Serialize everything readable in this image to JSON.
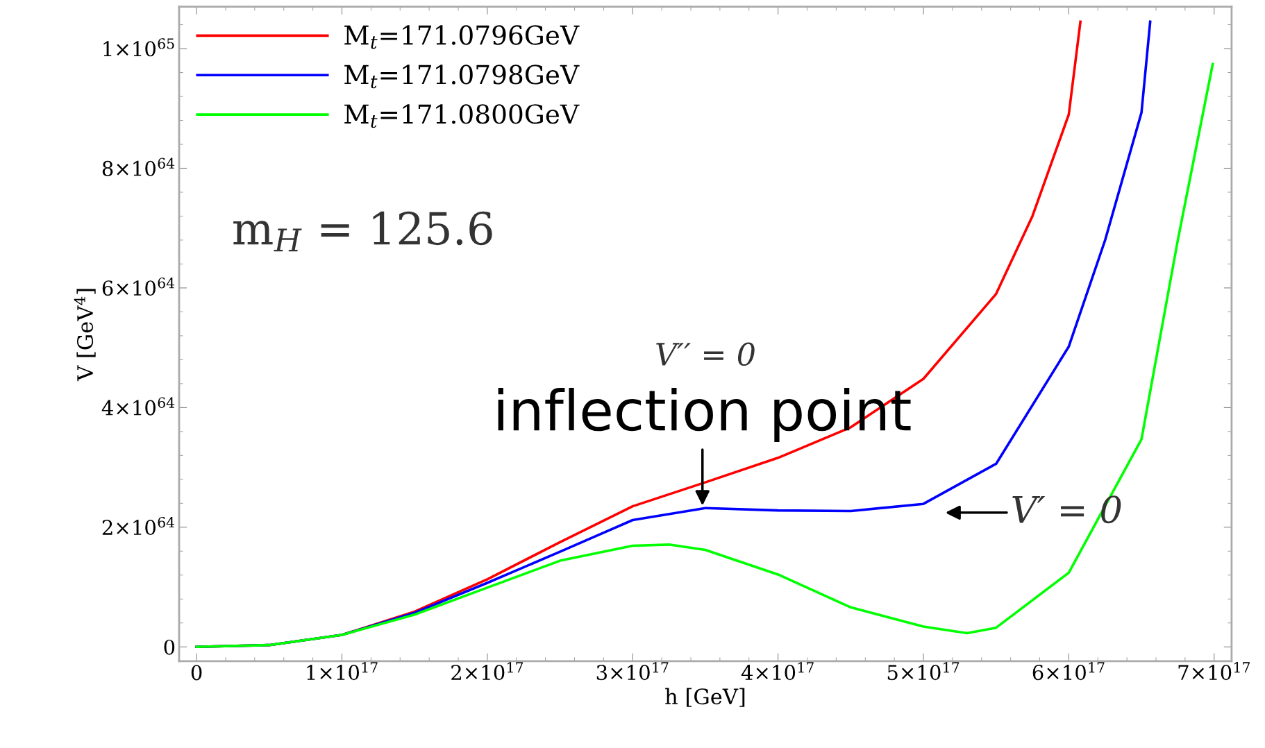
{
  "chart_data": {
    "type": "line",
    "xlabel": "h [GeV]",
    "ylabel": "V [GeV$^{4}$]",
    "xlim": [
      -1.2e+16,
      7.12e+17
    ],
    "ylim": [
      -2.4e+63,
      1.07e+65
    ],
    "xticks": [
      0,
      {
        "value": 1e+17,
        "label": "1×10$^{17}$"
      },
      {
        "value": 2e+17,
        "label": "2×10$^{17}$"
      },
      {
        "value": 3e+17,
        "label": "3×10$^{17}$"
      },
      {
        "value": 4e+17,
        "label": "4×10$^{17}$"
      },
      {
        "value": 5e+17,
        "label": "5×10$^{17}$"
      },
      {
        "value": 6e+17,
        "label": "6×10$^{17}$"
      },
      {
        "value": 7e+17,
        "label": "7×10$^{17}$"
      }
    ],
    "yticks": [
      0,
      {
        "value": 2e+64,
        "label": "2×10$^{64}$"
      },
      {
        "value": 4e+64,
        "label": "4×10$^{64}$"
      },
      {
        "value": 6e+64,
        "label": "6×10$^{64}$"
      },
      {
        "value": 8e+64,
        "label": "8×10$^{64}$"
      },
      {
        "value": 1e+65,
        "label": "1×10$^{65}$"
      }
    ],
    "grid": false,
    "legend": "top left",
    "marker": "none",
    "line_style": "solid",
    "series": [
      {
        "name": "M$_{t}$=171.0796GeV",
        "color": "#ff0000",
        "x": [
          0,
          5e+16,
          1e+17,
          1.5e+17,
          2e+17,
          2.5e+17,
          3e+17,
          3.5e+17,
          4e+17,
          4.5e+17,
          5e+17,
          5.5e+17,
          5.75e+17,
          6e+17,
          6.08e+17
        ],
        "values": [
          0,
          3e+62,
          2e+63,
          5.9e+63,
          1.13e+64,
          1.75e+64,
          2.35e+64,
          2.75e+64,
          3.16e+64,
          3.67e+64,
          4.48e+64,
          5.9e+64,
          7.2e+64,
          8.9e+64,
          1.045e+65
        ]
      },
      {
        "name": "M$_{t}$=171.0798GeV",
        "color": "#0000ff",
        "x": [
          0,
          5e+16,
          1e+17,
          1.5e+17,
          2e+17,
          2.5e+17,
          3e+17,
          3.5e+17,
          4e+17,
          4.5e+17,
          5e+17,
          5.5e+17,
          6e+17,
          6.25e+17,
          6.5e+17,
          6.56e+17
        ],
        "values": [
          0,
          3e+62,
          2e+63,
          5.7e+63,
          1.07e+64,
          1.59e+64,
          2.12e+64,
          2.32e+64,
          2.28e+64,
          2.27e+64,
          2.39e+64,
          3.06e+64,
          5.02e+64,
          6.8e+64,
          8.93e+64,
          1.045e+65
        ]
      },
      {
        "name": "M$_{t}$=171.0800GeV",
        "color": "#00ff00",
        "x": [
          0,
          5e+16,
          1e+17,
          1.5e+17,
          2e+17,
          2.5e+17,
          3e+17,
          3.25e+17,
          3.5e+17,
          4e+17,
          4.5e+17,
          5e+17,
          5.3e+17,
          5.5e+17,
          6e+17,
          6.5e+17,
          6.75e+17,
          6.99e+17
        ],
        "values": [
          0,
          3e+62,
          2e+63,
          5.4e+63,
          9.9e+63,
          1.44e+64,
          1.69e+64,
          1.71e+64,
          1.62e+64,
          1.21e+64,
          6.6e+63,
          3.4e+63,
          2.3e+63,
          3.2e+63,
          1.24e+64,
          3.47e+64,
          6.8e+64,
          9.74e+64
        ]
      }
    ],
    "annotations": [
      "m$_{H}$ = 125.6",
      "V′′ = 0",
      {
        "text": "inflection point",
        "x": 3.48e+17,
        "y": 2.33e+64
      },
      "V′ = 0"
    ]
  }
}
